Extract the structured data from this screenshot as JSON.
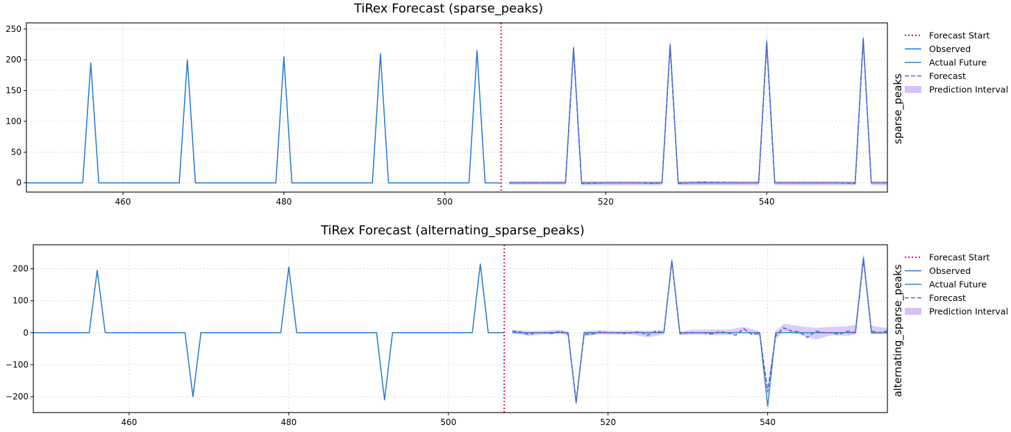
{
  "chart_data": [
    {
      "type": "line",
      "title": "TiRex Forecast (sparse_peaks)",
      "ylabel": "sparse_peaks",
      "xlim": [
        448,
        555
      ],
      "ylim": [
        -15,
        260
      ],
      "xticks": [
        460,
        480,
        500,
        520,
        540
      ],
      "yticks": [
        0,
        50,
        100,
        150,
        200,
        250
      ],
      "grid": true,
      "legend_position": "outside-right",
      "forecast_start": 507,
      "legend": [
        "Forecast Start",
        "Observed",
        "Actual Future",
        "Forecast",
        "Prediction Interval"
      ],
      "series": [
        {
          "name": "Observed",
          "color": "#1f77d4",
          "x": [
            448,
            455,
            456,
            457,
            467,
            468,
            469,
            479,
            480,
            481,
            491,
            492,
            493,
            503,
            504,
            505,
            507
          ],
          "y": [
            0,
            0,
            195,
            0,
            0,
            200,
            0,
            0,
            205,
            0,
            0,
            210,
            0,
            0,
            215,
            0,
            0
          ]
        },
        {
          "name": "Actual Future",
          "color": "#2a86c8",
          "x": [
            508,
            515,
            516,
            517,
            527,
            528,
            529,
            539,
            540,
            541,
            551,
            552,
            553,
            555
          ],
          "y": [
            0,
            0,
            220,
            0,
            0,
            225,
            0,
            0,
            230,
            0,
            0,
            235,
            0,
            0
          ]
        },
        {
          "name": "Forecast",
          "color": "#5a5ad6",
          "x": [
            508,
            515,
            516,
            517,
            520,
            524,
            526,
            527,
            528,
            529,
            532,
            536,
            539,
            540,
            541,
            545,
            549,
            551,
            552,
            553,
            555
          ],
          "y": [
            0,
            0,
            218,
            -1,
            0,
            0,
            -1,
            0,
            222,
            -1,
            1,
            0,
            0,
            226,
            0,
            0,
            0,
            -1,
            232,
            0,
            0
          ]
        },
        {
          "name": "Prediction Interval",
          "color": "#b48cf0",
          "x": [
            508,
            515,
            516,
            517,
            527,
            528,
            529,
            539,
            540,
            541,
            551,
            552,
            553,
            555
          ],
          "lower": [
            -3,
            -3,
            205,
            -4,
            -4,
            210,
            -4,
            -4,
            212,
            -4,
            -4,
            218,
            -4,
            -4
          ],
          "upper": [
            3,
            3,
            232,
            3,
            3,
            236,
            3,
            3,
            245,
            3,
            3,
            248,
            3,
            3
          ]
        }
      ]
    },
    {
      "type": "line",
      "title": "TiRex Forecast (alternating_sparse_peaks)",
      "ylabel": "alternating_sparse_peaks",
      "xlim": [
        448,
        555
      ],
      "ylim": [
        -250,
        275
      ],
      "xticks": [
        460,
        480,
        500,
        520,
        540
      ],
      "yticks": [
        -200,
        -100,
        0,
        100,
        200
      ],
      "grid": true,
      "legend_position": "outside-right",
      "forecast_start": 507,
      "legend": [
        "Forecast Start",
        "Observed",
        "Actual Future",
        "Forecast",
        "Prediction Interval"
      ],
      "series": [
        {
          "name": "Observed",
          "color": "#1f77d4",
          "x": [
            448,
            455,
            456,
            457,
            467,
            468,
            469,
            479,
            480,
            481,
            491,
            492,
            493,
            503,
            504,
            505,
            507
          ],
          "y": [
            0,
            0,
            195,
            0,
            0,
            -200,
            0,
            0,
            205,
            0,
            0,
            -210,
            0,
            0,
            215,
            0,
            0
          ]
        },
        {
          "name": "Actual Future",
          "color": "#2a86c8",
          "x": [
            508,
            515,
            516,
            517,
            527,
            528,
            529,
            539,
            540,
            541,
            551,
            552,
            553,
            555
          ],
          "y": [
            0,
            0,
            -220,
            0,
            0,
            225,
            0,
            0,
            -230,
            0,
            0,
            235,
            0,
            0
          ]
        },
        {
          "name": "Forecast",
          "color": "#5a5ad6",
          "x": [
            508,
            509,
            510,
            511,
            512,
            513,
            514,
            515,
            516,
            517,
            518,
            519,
            520,
            521,
            522,
            523,
            524,
            525,
            526,
            527,
            528,
            529,
            530,
            531,
            532,
            533,
            534,
            535,
            536,
            537,
            538,
            539,
            540,
            541,
            542,
            543,
            544,
            545,
            546,
            547,
            548,
            549,
            550,
            551,
            552,
            553,
            554,
            555
          ],
          "y": [
            5,
            2,
            -5,
            0,
            0,
            -3,
            5,
            -5,
            -215,
            -5,
            -4,
            2,
            0,
            0,
            -2,
            0,
            2,
            -8,
            5,
            0,
            225,
            -3,
            0,
            0,
            0,
            -4,
            3,
            0,
            -8,
            12,
            -5,
            -3,
            -185,
            -10,
            15,
            5,
            2,
            -15,
            5,
            0,
            0,
            -5,
            5,
            0,
            230,
            5,
            0,
            5
          ]
        },
        {
          "name": "Prediction Interval",
          "color": "#b48cf0",
          "x": [
            508,
            510,
            512,
            514,
            515,
            516,
            517,
            519,
            521,
            523,
            525,
            527,
            528,
            529,
            531,
            533,
            535,
            537,
            539,
            540,
            541,
            542,
            544,
            546,
            548,
            550,
            551,
            552,
            553,
            554,
            555
          ],
          "lower": [
            -2,
            -10,
            -6,
            -2,
            -10,
            -222,
            -12,
            -5,
            -6,
            -5,
            -15,
            -5,
            212,
            -8,
            -6,
            -8,
            -7,
            4,
            -10,
            -200,
            -20,
            4,
            -5,
            -22,
            -8,
            -10,
            -5,
            215,
            -5,
            -5,
            -5
          ],
          "upper": [
            10,
            5,
            6,
            10,
            3,
            -205,
            5,
            8,
            6,
            7,
            6,
            8,
            240,
            4,
            10,
            10,
            10,
            18,
            5,
            -165,
            5,
            28,
            20,
            15,
            18,
            20,
            25,
            250,
            22,
            18,
            15
          ]
        }
      ]
    }
  ]
}
